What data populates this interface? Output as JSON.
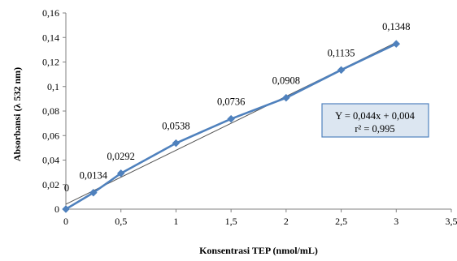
{
  "chart_data": {
    "type": "scatter",
    "title": "",
    "xlabel": "Konsentrasi TEP (nmol/mL)",
    "ylabel": "Absorbansi (λ 532 nm)",
    "xlim": [
      0,
      3.5
    ],
    "ylim": [
      0,
      0.16
    ],
    "x_ticks": [
      "0",
      "0,5",
      "1",
      "1,5",
      "2",
      "2,5",
      "3",
      "3,5"
    ],
    "y_ticks": [
      "0",
      "0,02",
      "0,04",
      "0,06",
      "0,08",
      "0,1",
      "0,12",
      "0,14",
      "0,16"
    ],
    "grid": false,
    "legend": "none",
    "series": [
      {
        "color": "#4f81bd",
        "marker": "diamond",
        "x": [
          0,
          0.25,
          0.5,
          1,
          1.5,
          2,
          2.5,
          3
        ],
        "y": [
          0,
          0.0134,
          0.0292,
          0.0538,
          0.0736,
          0.0908,
          0.1135,
          0.1348
        ],
        "labels": [
          "0",
          "0,0134",
          "0,0292",
          "0,0538",
          "0,0736",
          "0,0908",
          "0,1135",
          "0,1348"
        ]
      }
    ],
    "trendline": {
      "type": "linear",
      "color": "#555555",
      "slope": 0.044,
      "intercept": 0.004,
      "x_range": [
        0,
        3
      ],
      "equation": "Y = 0,044x + 0,004",
      "r2": "r² = 0,995"
    }
  }
}
